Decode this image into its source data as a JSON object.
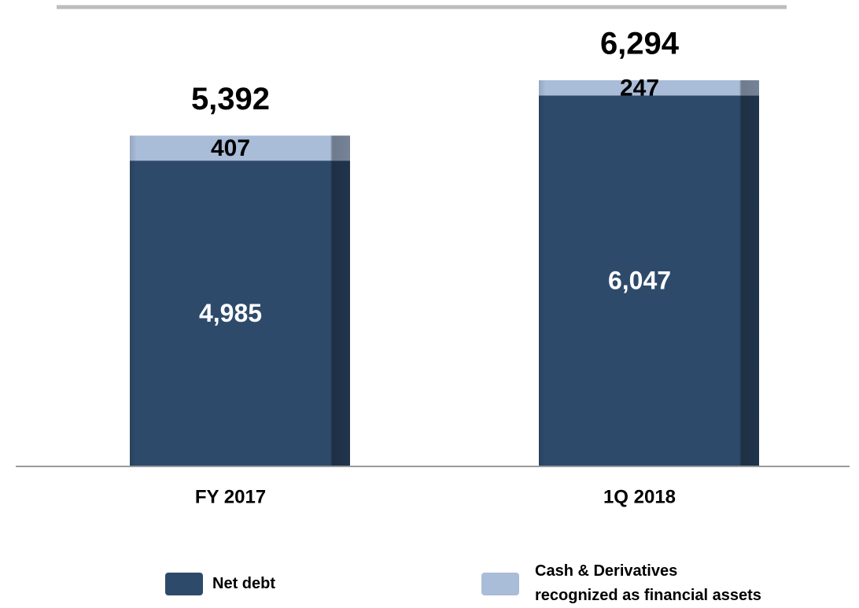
{
  "chart_data": {
    "type": "stacked_bar",
    "categories": [
      "FY 2017",
      "1Q 2018"
    ],
    "series": [
      {
        "name": "Net debt",
        "color": "#2e4a6b",
        "values": [
          4985,
          6047
        ],
        "value_labels": [
          "4,985",
          "6,047"
        ]
      },
      {
        "name": "Cash & Derivatives\nrecognized as financial assets",
        "color": "#a9bcd8",
        "values": [
          407,
          247
        ]
      }
    ],
    "totals": [
      5392,
      6294
    ],
    "totals_labels": [
      "5,392",
      "6,294"
    ],
    "ylim": [
      0,
      7000
    ]
  }
}
